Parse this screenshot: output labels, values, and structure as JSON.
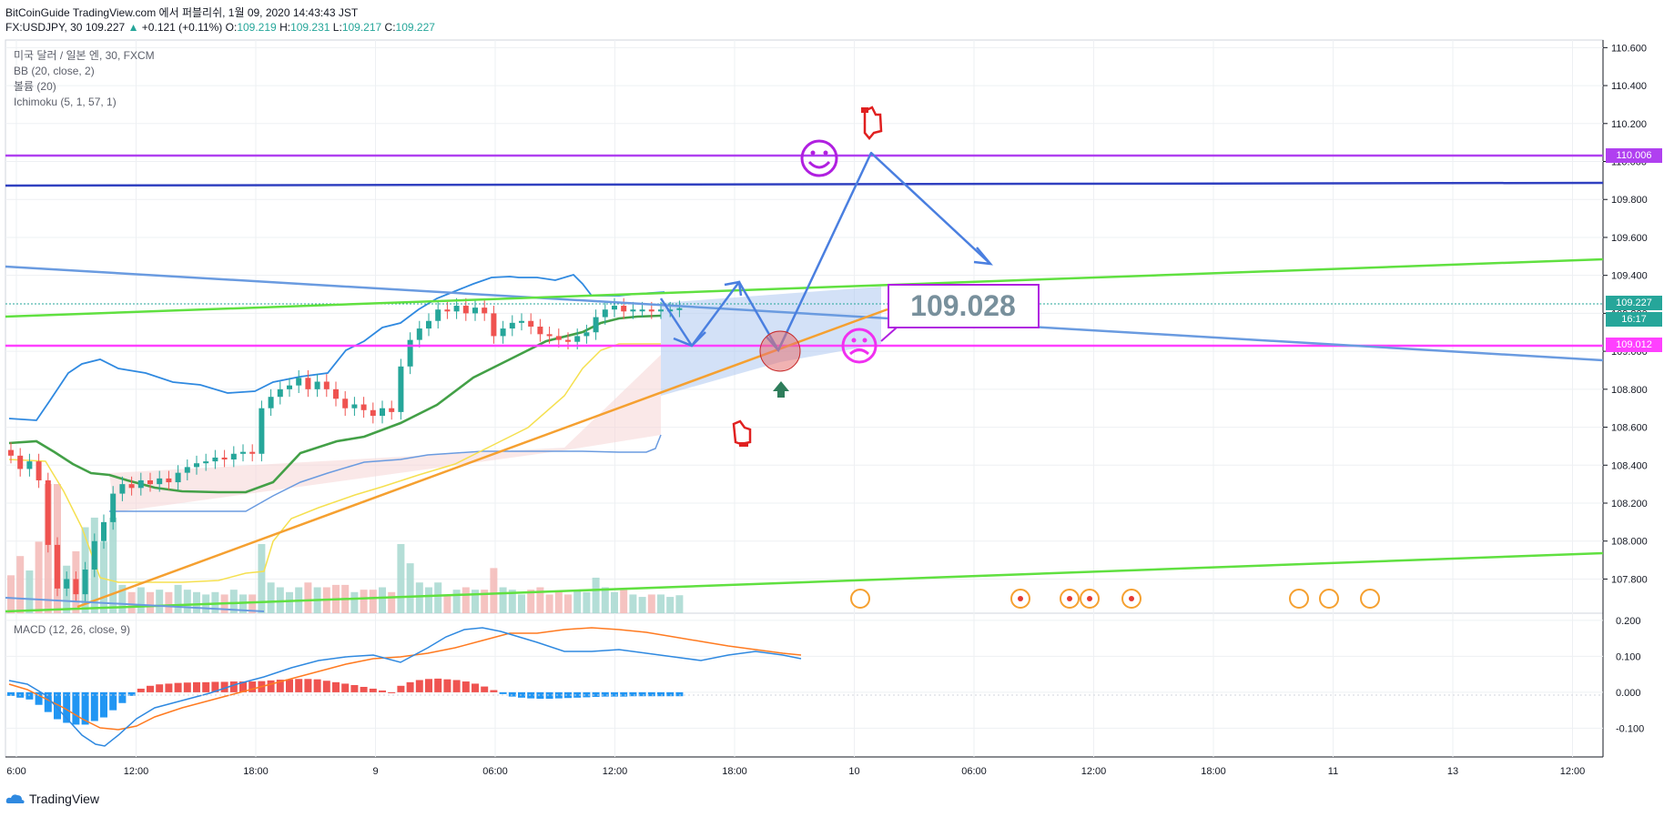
{
  "header": {
    "publisher_line": "BitCoinGuide TradingView.com 에서 퍼블리쉬, 1월 09, 2020 14:43:43 JST",
    "symbol": "FX:USDJPY, 30",
    "last": "109.227",
    "change": "+0.121 (+0.11%)",
    "o_label": "O:",
    "o": "109.219",
    "h_label": "H:",
    "h": "109.231",
    "l_label": "L:",
    "l": "109.217",
    "c_label": "C:",
    "c": "109.227"
  },
  "legend": {
    "title": "미국 달러 / 일본 엔, 30, FXCM",
    "bb": "BB (20, close, 2)",
    "volume": "볼륨 (20)",
    "ichimoku": "Ichimoku (5, 1, 57, 1)",
    "macd": "MACD (12, 26, close, 9)"
  },
  "annotation": {
    "big_label": "109.028"
  },
  "price_tags": {
    "level_110006": "110.006",
    "current": "109.227",
    "countdown": "16:17",
    "level_109012": "109.012"
  },
  "colors": {
    "up": "#26a69a",
    "down": "#ef5350",
    "purple": "#b040f0",
    "magenta": "#ff40ff",
    "navy": "#3040c0",
    "green_line": "#60e040",
    "blue_trend": "#6a9be0",
    "orange": "#f5a030"
  },
  "logo": {
    "text": "TradingView"
  },
  "chart_data": [
    {
      "type": "candlestick",
      "symbol": "FX:USDJPY",
      "timeframe": "30",
      "x_ticks": [
        "6:00",
        "12:00",
        "18:00",
        "9",
        "06:00",
        "12:00",
        "18:00",
        "10",
        "06:00",
        "12:00",
        "18:00",
        "11",
        "13",
        "12:00"
      ],
      "y_ticks": [
        107.8,
        108.0,
        108.2,
        108.4,
        108.6,
        108.8,
        109.0,
        109.2,
        109.4,
        109.6,
        109.8,
        110.0,
        110.2,
        110.4,
        110.6
      ],
      "ylim": [
        107.62,
        110.64
      ],
      "horizontal_levels": [
        110.006,
        109.012,
        109.227
      ],
      "close_series": [
        108.45,
        108.38,
        108.42,
        108.32,
        107.98,
        107.75,
        107.8,
        107.72,
        107.85,
        108.0,
        108.1,
        108.25,
        108.3,
        108.28,
        108.32,
        108.3,
        108.33,
        108.31,
        108.36,
        108.39,
        108.41,
        108.42,
        108.44,
        108.43,
        108.46,
        108.47,
        108.46,
        108.7,
        108.76,
        108.8,
        108.82,
        108.86,
        108.8,
        108.84,
        108.8,
        108.75,
        108.7,
        108.72,
        108.69,
        108.66,
        108.7,
        108.68,
        108.92,
        109.06,
        109.12,
        109.16,
        109.22,
        109.21,
        109.24,
        109.2,
        109.23,
        109.2,
        109.08,
        109.12,
        109.15,
        109.16,
        109.13,
        109.09,
        109.08,
        109.06,
        109.05,
        109.08,
        109.1,
        109.18,
        109.22,
        109.24,
        109.21,
        109.22,
        109.22,
        109.21,
        109.22,
        109.22,
        109.227
      ],
      "volume_bars": 73
    },
    {
      "type": "histogram",
      "name": "MACD (12, 26, close, 9)",
      "y_ticks": [
        -0.1,
        0.0,
        0.1,
        0.2
      ],
      "ylim": [
        -0.18,
        0.22
      ],
      "histogram": [
        -0.01,
        -0.015,
        -0.02,
        -0.035,
        -0.055,
        -0.075,
        -0.085,
        -0.09,
        -0.09,
        -0.08,
        -0.07,
        -0.05,
        -0.03,
        -0.01,
        0.01,
        0.018,
        0.022,
        0.024,
        0.026,
        0.027,
        0.028,
        0.028,
        0.029,
        0.029,
        0.03,
        0.03,
        0.03,
        0.031,
        0.033,
        0.035,
        0.036,
        0.037,
        0.037,
        0.036,
        0.032,
        0.028,
        0.024,
        0.02,
        0.015,
        0.01,
        0.005,
        0.0,
        0.018,
        0.028,
        0.034,
        0.037,
        0.038,
        0.036,
        0.034,
        0.03,
        0.024,
        0.016,
        0.006,
        -0.005,
        -0.012,
        -0.015,
        -0.017,
        -0.018,
        -0.018,
        -0.017,
        -0.016,
        -0.015,
        -0.014,
        -0.013,
        -0.012,
        -0.012,
        -0.012,
        -0.011,
        -0.011,
        -0.011,
        -0.011,
        -0.011,
        -0.011
      ]
    }
  ]
}
